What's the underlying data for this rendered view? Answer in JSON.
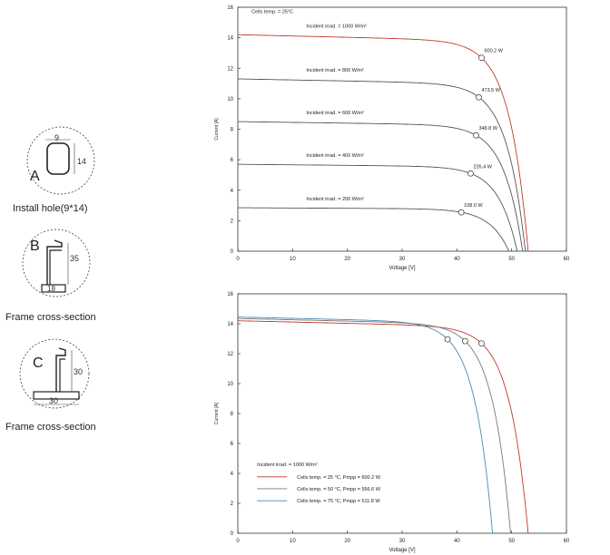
{
  "diagrams": [
    {
      "letter": "A",
      "dims": [
        "9",
        "14"
      ],
      "caption": "Install hole(9*14)"
    },
    {
      "letter": "B",
      "dims": [
        "35",
        "18"
      ],
      "caption": "Frame cross-section"
    },
    {
      "letter": "C",
      "dims": [
        "30",
        "30"
      ],
      "caption": "Frame cross-section"
    }
  ],
  "chart_data": [
    {
      "type": "line",
      "title": "",
      "xlabel": "Voltage  [V]",
      "ylabel": "Current    [A]",
      "xlim": [
        0,
        60
      ],
      "ylim": [
        0,
        16
      ],
      "xticks": [
        0,
        10,
        20,
        30,
        40,
        50,
        60
      ],
      "yticks": [
        0,
        2,
        4,
        6,
        8,
        10,
        12,
        14,
        16
      ],
      "annotations": [
        "Cells temp. = 25°C"
      ],
      "series": [
        {
          "name": "Incident irrad. = 1000 W/m²",
          "isc": 14.2,
          "voc": 53.0,
          "mpp_v": 44.5,
          "mpp_i": 13.5,
          "pmax_label": "600.2  W",
          "color": "#c0392b"
        },
        {
          "name": "Incident irrad. = 800 W/m²",
          "isc": 11.3,
          "voc": 52.5,
          "mpp_v": 44.0,
          "mpp_i": 10.7,
          "pmax_label": "473.5  W",
          "color": "#555555"
        },
        {
          "name": "Incident irrad. = 600 W/m²",
          "isc": 8.5,
          "voc": 52.0,
          "mpp_v": 43.5,
          "mpp_i": 8.0,
          "pmax_label": "348.8  W",
          "color": "#555555"
        },
        {
          "name": "Incident irrad. = 400 W/m²",
          "isc": 5.7,
          "voc": 51.0,
          "mpp_v": 42.5,
          "mpp_i": 5.35,
          "pmax_label": "226.4  W",
          "color": "#555555"
        },
        {
          "name": "Incident irrad. = 200 W/m²",
          "isc": 2.85,
          "voc": 49.5,
          "mpp_v": 40.8,
          "mpp_i": 2.65,
          "pmax_label": "108.0  W",
          "color": "#555555"
        }
      ]
    },
    {
      "type": "line",
      "title": "",
      "xlabel": "Voltage  [V]",
      "ylabel": "Current    [A]",
      "xlim": [
        0,
        60
      ],
      "ylim": [
        0,
        16
      ],
      "xticks": [
        0,
        10,
        20,
        30,
        40,
        50,
        60
      ],
      "yticks": [
        0,
        2,
        4,
        6,
        8,
        10,
        12,
        14,
        16
      ],
      "annotations": [
        "Incident irrad. = 1000 W/m²"
      ],
      "legend": "bottom-left",
      "series": [
        {
          "name": "Cells temp. = 25 °C,  Pmpp = 600.2  W",
          "isc": 14.2,
          "voc": 53.0,
          "mpp_v": 44.5,
          "mpp_i": 13.4,
          "color": "#c0392b"
        },
        {
          "name": "Cells temp. = 50 °C,  Pmpp = 556.6  W",
          "isc": 14.35,
          "voc": 49.8,
          "mpp_v": 41.5,
          "mpp_i": 13.4,
          "color": "#7a7a7a"
        },
        {
          "name": "Cells temp. = 75 °C,  Pmpp = 511.8  W",
          "isc": 14.45,
          "voc": 46.5,
          "mpp_v": 38.3,
          "mpp_i": 13.4,
          "color": "#4a8ab5"
        }
      ]
    }
  ]
}
